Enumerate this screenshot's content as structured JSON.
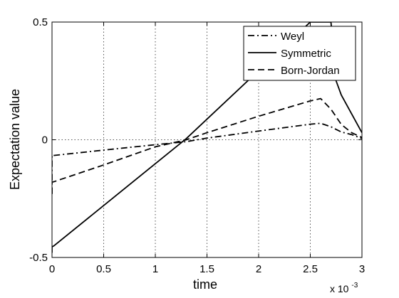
{
  "chart_data": {
    "type": "line",
    "title": "",
    "xlabel": "time",
    "ylabel": "Expectation value",
    "x_exponent_label": "x 10",
    "x_exponent_power": "-3",
    "xlim": [
      0,
      3
    ],
    "ylim": [
      -0.5,
      0.5
    ],
    "x_ticks": [
      {
        "value": 0,
        "label": "0"
      },
      {
        "value": 0.5,
        "label": "0.5"
      },
      {
        "value": 1,
        "label": "1"
      },
      {
        "value": 1.5,
        "label": "1.5"
      },
      {
        "value": 2,
        "label": "2"
      },
      {
        "value": 2.5,
        "label": "2.5"
      },
      {
        "value": 3,
        "label": "3"
      }
    ],
    "y_ticks": [
      {
        "value": -0.5,
        "label": "-0.5"
      },
      {
        "value": 0,
        "label": "0"
      },
      {
        "value": 0.5,
        "label": "0.5"
      }
    ],
    "grid": true,
    "legend_position": "top-right",
    "series": [
      {
        "name": "Weyl",
        "line_style": "dash-dot",
        "color": "#000000",
        "x": [
          0,
          0,
          0.01,
          0.5,
          1.0,
          1.3,
          1.5,
          2.0,
          2.5,
          2.6,
          2.7,
          2.8,
          2.9,
          3.0
        ],
        "y": [
          -0.23,
          -0.065,
          -0.067,
          -0.044,
          -0.021,
          -0.008,
          0.007,
          0.037,
          0.066,
          0.07,
          0.055,
          0.033,
          0.022,
          0.005
        ]
      },
      {
        "name": "Symmetric",
        "line_style": "solid",
        "color": "#000000",
        "x": [
          0,
          0,
          0.02,
          1.3,
          2.5,
          2.7,
          2.75,
          2.8,
          2.9,
          3.0
        ],
        "y": [
          -0.48,
          -0.455,
          -0.45,
          0.005,
          0.5,
          0.5,
          0.25,
          0.19,
          0.11,
          0.03
        ]
      },
      {
        "name": "Born-Jordan",
        "line_style": "dashed",
        "color": "#000000",
        "x": [
          0,
          0,
          0.02,
          0.5,
          1.0,
          1.3,
          1.5,
          2.0,
          2.5,
          2.6,
          2.7,
          2.8,
          2.9,
          3.0
        ],
        "y": [
          -0.23,
          -0.18,
          -0.178,
          -0.107,
          -0.03,
          0.0,
          0.03,
          0.1,
          0.165,
          0.175,
          0.13,
          0.065,
          0.03,
          0.01
        ]
      }
    ]
  }
}
